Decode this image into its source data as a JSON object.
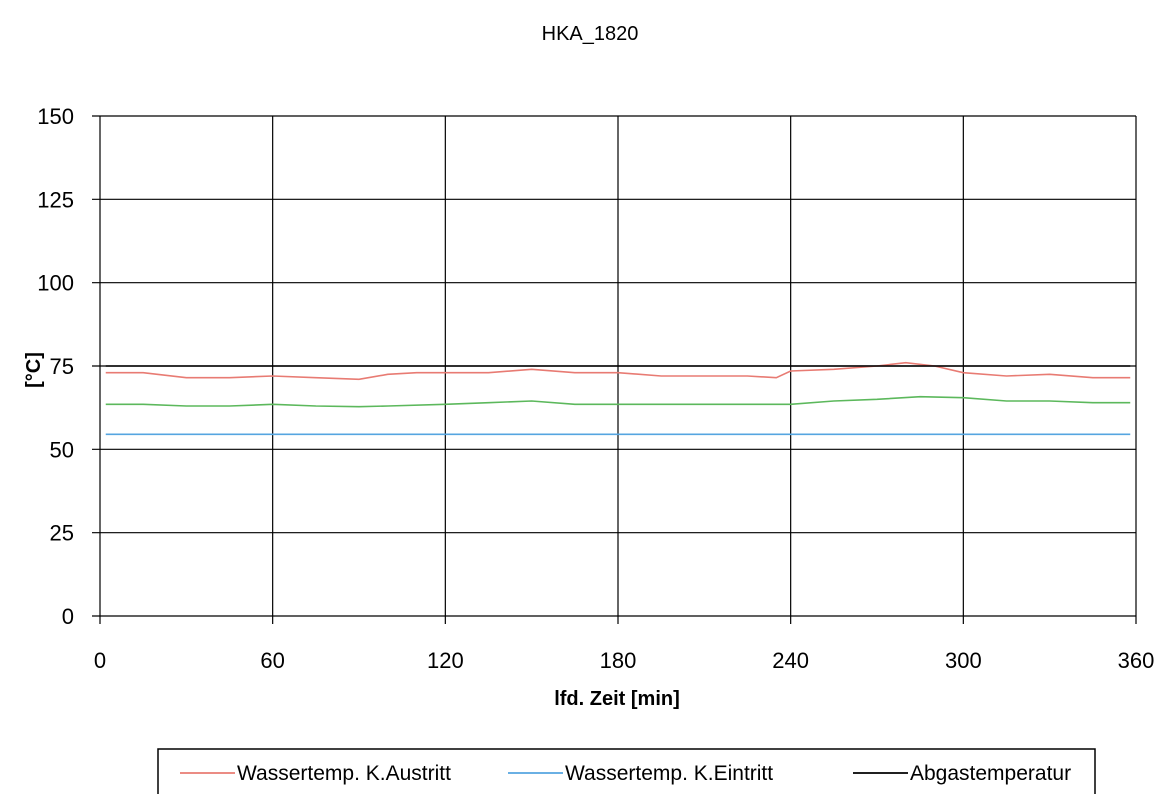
{
  "chart_data": {
    "type": "line",
    "title": "HKA_1820",
    "xlabel": "lfd. Zeit [min]",
    "ylabel": "[°C]",
    "xlim": [
      0,
      360
    ],
    "ylim": [
      0,
      150
    ],
    "xticks": [
      0,
      60,
      120,
      180,
      240,
      300,
      360
    ],
    "yticks": [
      0,
      25,
      50,
      75,
      100,
      125,
      150
    ],
    "grid": true,
    "legend_position": "bottom",
    "series": [
      {
        "name": "Wassertemp. K.Austritt",
        "color": "#e87b73",
        "x": [
          2,
          15,
          30,
          45,
          60,
          75,
          90,
          100,
          110,
          120,
          135,
          150,
          165,
          180,
          195,
          210,
          225,
          235,
          240,
          255,
          270,
          280,
          290,
          300,
          315,
          330,
          345,
          358
        ],
        "y": [
          73,
          73,
          71.5,
          71.5,
          72,
          71.5,
          71,
          72.5,
          73,
          73,
          73,
          74,
          73,
          73,
          72,
          72,
          72,
          71.5,
          73.5,
          74,
          75,
          76,
          75,
          73,
          72,
          72.5,
          71.5,
          71.5
        ]
      },
      {
        "name": "Wassertemp. K.Eintritt",
        "color": "#55a5e0",
        "x": [
          2,
          60,
          120,
          180,
          240,
          300,
          358
        ],
        "y": [
          54.5,
          54.5,
          54.5,
          54.5,
          54.5,
          54.5,
          54.5
        ]
      },
      {
        "name": "Abgastemperatur",
        "color": "#000000",
        "x": [
          2,
          358
        ],
        "y": [
          75,
          75
        ]
      },
      {
        "name": "",
        "color": "#5cb85c",
        "x": [
          2,
          15,
          30,
          45,
          60,
          75,
          90,
          100,
          120,
          135,
          150,
          165,
          180,
          200,
          220,
          240,
          255,
          270,
          285,
          300,
          315,
          330,
          345,
          358
        ],
        "y": [
          63.5,
          63.5,
          63,
          63,
          63.5,
          63,
          62.8,
          63,
          63.5,
          64,
          64.5,
          63.5,
          63.5,
          63.5,
          63.5,
          63.5,
          64.5,
          65,
          65.8,
          65.5,
          64.5,
          64.5,
          64,
          64
        ]
      }
    ]
  }
}
